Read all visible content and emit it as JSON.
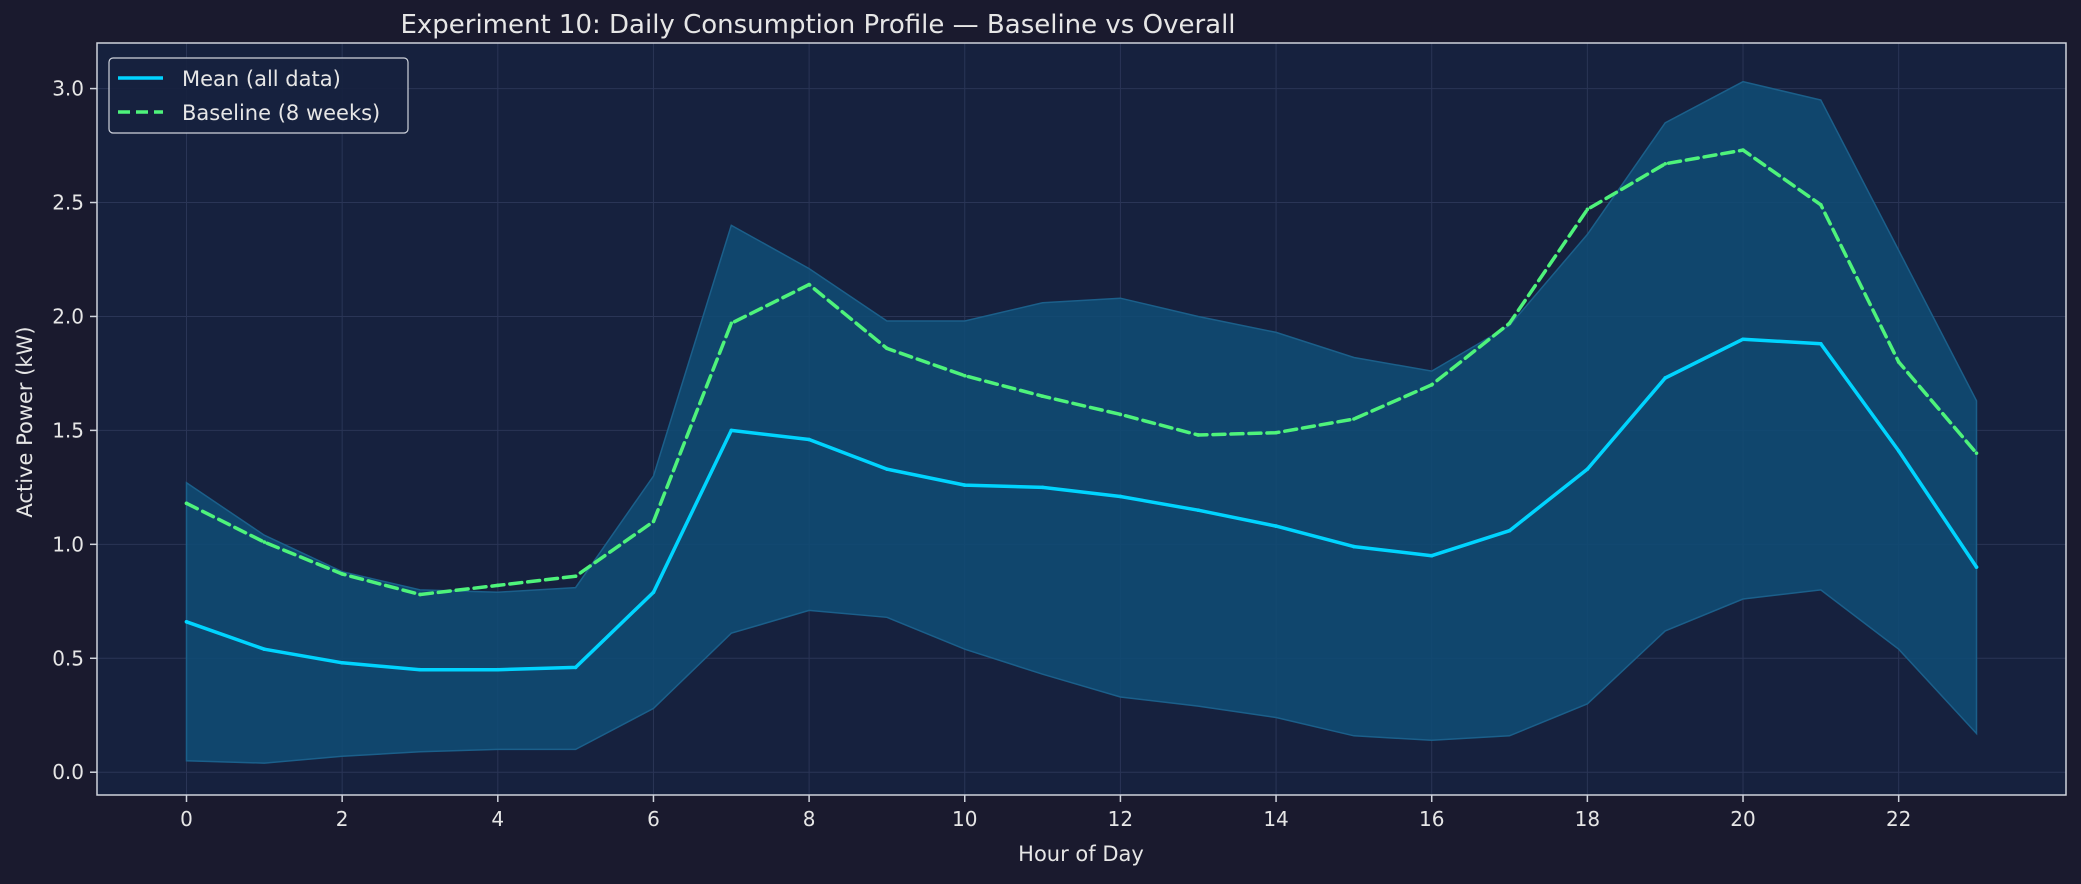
{
  "colors": {
    "page_bg": "#1a1a2e",
    "plot_bg": "#16213e",
    "text": "#e6e6e6",
    "axis": "#cfd3dc",
    "grid": "#2a3556",
    "band_fill": "#0f4c75",
    "band_edge": "#1b5f8a",
    "mean": "#00d4ff",
    "baseline": "#4ef37b"
  },
  "chart_data": {
    "type": "line",
    "title": "Experiment 10: Daily Consumption Profile — Baseline vs Overall",
    "xlabel": "Hour of Day",
    "ylabel": "Active Power (kW)",
    "xlim": [
      -1.15,
      24.15
    ],
    "ylim": [
      -0.1,
      3.2
    ],
    "xticks": [
      0,
      2,
      4,
      6,
      8,
      10,
      12,
      14,
      16,
      18,
      20,
      22
    ],
    "yticks": [
      0.0,
      0.5,
      1.0,
      1.5,
      2.0,
      2.5,
      3.0
    ],
    "grid": true,
    "legend_position": "top-left",
    "x": [
      0,
      1,
      2,
      3,
      4,
      5,
      6,
      7,
      8,
      9,
      10,
      11,
      12,
      13,
      14,
      15,
      16,
      17,
      18,
      19,
      20,
      21,
      22,
      23
    ],
    "series": [
      {
        "name": "Mean (all data)",
        "style": "solid",
        "values": [
          0.66,
          0.54,
          0.48,
          0.45,
          0.45,
          0.46,
          0.79,
          1.5,
          1.46,
          1.33,
          1.26,
          1.25,
          1.21,
          1.15,
          1.08,
          0.99,
          0.95,
          1.06,
          1.33,
          1.73,
          1.9,
          1.88,
          1.41,
          0.9
        ]
      },
      {
        "name": "Baseline (8 weeks)",
        "style": "dashed",
        "values": [
          1.18,
          1.01,
          0.87,
          0.78,
          0.82,
          0.86,
          1.1,
          1.97,
          2.14,
          1.86,
          1.74,
          1.65,
          1.57,
          1.48,
          1.49,
          1.55,
          1.7,
          1.97,
          2.47,
          2.67,
          2.73,
          2.49,
          1.8,
          1.4
        ]
      }
    ],
    "band": {
      "upper": [
        1.27,
        1.04,
        0.88,
        0.8,
        0.79,
        0.81,
        1.3,
        2.4,
        2.21,
        1.98,
        1.98,
        2.06,
        2.08,
        2.0,
        1.93,
        1.82,
        1.76,
        1.96,
        2.36,
        2.85,
        3.03,
        2.95,
        2.29,
        1.63
      ],
      "lower": [
        0.05,
        0.04,
        0.07,
        0.09,
        0.1,
        0.1,
        0.28,
        0.61,
        0.71,
        0.68,
        0.54,
        0.43,
        0.33,
        0.29,
        0.24,
        0.16,
        0.14,
        0.16,
        0.3,
        0.62,
        0.76,
        0.8,
        0.54,
        0.17
      ]
    }
  }
}
